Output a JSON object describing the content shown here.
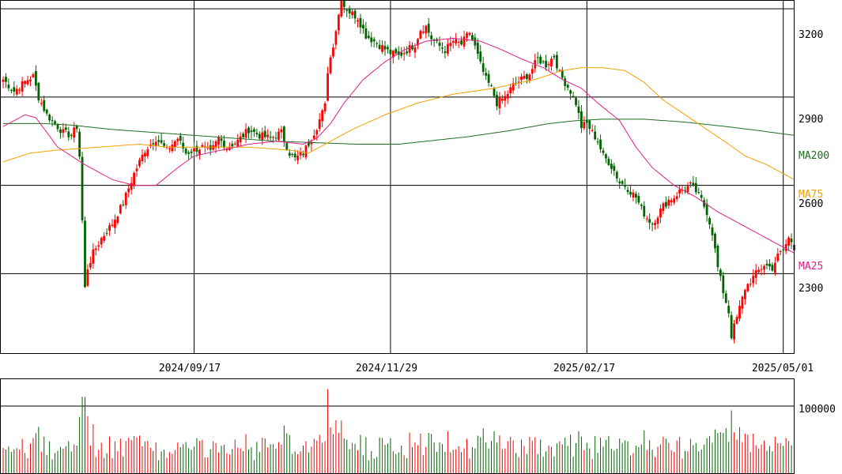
{
  "chart_data": {
    "type": "candlestick",
    "colors": {
      "up": "#ff0000",
      "down": "#006400",
      "ma25": "#e0208a",
      "ma75": "#f5a000",
      "ma200": "#1e6e1e",
      "grid": "#000000",
      "label": "#000000"
    },
    "price_axis": {
      "ylim": [
        2030,
        3230
      ],
      "ticks": [
        3200,
        2900,
        2600,
        2300
      ],
      "tick_labels": [
        "3200",
        "2900",
        "2600",
        "2300"
      ]
    },
    "date_axis": {
      "ticks": [
        "2024/09/17",
        "2024/11/29",
        "2025/02/17",
        "2025/05/01"
      ],
      "tick_index": [
        70,
        142,
        214,
        286
      ]
    },
    "volume_axis": {
      "ylim": [
        0,
        140000
      ],
      "ticks": [
        100000
      ],
      "tick_labels": [
        "100000"
      ]
    },
    "legend": [
      {
        "key": "ma200",
        "label": "MA200"
      },
      {
        "key": "ma75",
        "label": "MA75"
      },
      {
        "key": "ma25",
        "label": "MA25"
      }
    ],
    "anchors": [
      [
        0,
        2960
      ],
      [
        4,
        2920
      ],
      [
        9,
        2960
      ],
      [
        11,
        2970
      ],
      [
        13,
        2900
      ],
      [
        16,
        2840
      ],
      [
        19,
        2810
      ],
      [
        22,
        2780
      ],
      [
        25,
        2770
      ],
      [
        27,
        2800
      ],
      [
        28,
        2700
      ],
      [
        29,
        2480
      ],
      [
        30,
        2250
      ],
      [
        31,
        2320
      ],
      [
        33,
        2370
      ],
      [
        36,
        2420
      ],
      [
        40,
        2470
      ],
      [
        44,
        2540
      ],
      [
        48,
        2640
      ],
      [
        52,
        2720
      ],
      [
        56,
        2760
      ],
      [
        60,
        2720
      ],
      [
        64,
        2760
      ],
      [
        67,
        2710
      ],
      [
        70,
        2720
      ],
      [
        73,
        2730
      ],
      [
        76,
        2710
      ],
      [
        79,
        2760
      ],
      [
        82,
        2730
      ],
      [
        86,
        2750
      ],
      [
        90,
        2790
      ],
      [
        94,
        2770
      ],
      [
        98,
        2760
      ],
      [
        102,
        2780
      ],
      [
        105,
        2710
      ],
      [
        107,
        2690
      ],
      [
        110,
        2710
      ],
      [
        113,
        2760
      ],
      [
        115,
        2800
      ],
      [
        118,
        2870
      ],
      [
        119,
        2990
      ],
      [
        121,
        3080
      ],
      [
        123,
        3180
      ],
      [
        124,
        3250
      ],
      [
        125,
        3210
      ],
      [
        127,
        3190
      ],
      [
        130,
        3170
      ],
      [
        133,
        3110
      ],
      [
        136,
        3090
      ],
      [
        139,
        3070
      ],
      [
        142,
        3050
      ],
      [
        145,
        3040
      ],
      [
        148,
        3060
      ],
      [
        151,
        3080
      ],
      [
        153,
        3130
      ],
      [
        155,
        3140
      ],
      [
        157,
        3100
      ],
      [
        159,
        3080
      ],
      [
        162,
        3060
      ],
      [
        165,
        3090
      ],
      [
        168,
        3080
      ],
      [
        171,
        3120
      ],
      [
        173,
        3070
      ],
      [
        175,
        3010
      ],
      [
        177,
        2960
      ],
      [
        179,
        2930
      ],
      [
        181,
        2880
      ],
      [
        184,
        2900
      ],
      [
        187,
        2940
      ],
      [
        190,
        2960
      ],
      [
        193,
        2980
      ],
      [
        196,
        3030
      ],
      [
        199,
        3010
      ],
      [
        202,
        3040
      ],
      [
        204,
        2980
      ],
      [
        206,
        2950
      ],
      [
        208,
        2920
      ],
      [
        210,
        2880
      ],
      [
        212,
        2800
      ],
      [
        214,
        2810
      ],
      [
        216,
        2780
      ],
      [
        218,
        2750
      ],
      [
        220,
        2700
      ],
      [
        222,
        2680
      ],
      [
        224,
        2650
      ],
      [
        226,
        2610
      ],
      [
        228,
        2600
      ],
      [
        230,
        2580
      ],
      [
        232,
        2560
      ],
      [
        234,
        2520
      ],
      [
        236,
        2490
      ],
      [
        238,
        2470
      ],
      [
        240,
        2500
      ],
      [
        242,
        2530
      ],
      [
        244,
        2550
      ],
      [
        246,
        2560
      ],
      [
        248,
        2580
      ],
      [
        250,
        2590
      ],
      [
        252,
        2600
      ],
      [
        254,
        2580
      ],
      [
        256,
        2550
      ],
      [
        258,
        2510
      ],
      [
        260,
        2440
      ],
      [
        262,
        2320
      ],
      [
        264,
        2240
      ],
      [
        266,
        2170
      ],
      [
        267,
        2090
      ],
      [
        269,
        2150
      ],
      [
        272,
        2250
      ],
      [
        276,
        2300
      ],
      [
        279,
        2330
      ],
      [
        282,
        2320
      ],
      [
        284,
        2360
      ],
      [
        286,
        2380
      ],
      [
        288,
        2420
      ],
      [
        289,
        2410
      ],
      [
        290,
        2390
      ]
    ],
    "ma_anchors": {
      "ma25": [
        [
          0,
          2800
        ],
        [
          8,
          2840
        ],
        [
          12,
          2830
        ],
        [
          20,
          2730
        ],
        [
          30,
          2670
        ],
        [
          40,
          2620
        ],
        [
          48,
          2600
        ],
        [
          56,
          2600
        ],
        [
          64,
          2660
        ],
        [
          70,
          2700
        ],
        [
          80,
          2720
        ],
        [
          90,
          2740
        ],
        [
          100,
          2750
        ],
        [
          110,
          2740
        ],
        [
          115,
          2760
        ],
        [
          120,
          2810
        ],
        [
          125,
          2880
        ],
        [
          132,
          2960
        ],
        [
          140,
          3020
        ],
        [
          147,
          3060
        ],
        [
          155,
          3090
        ],
        [
          165,
          3100
        ],
        [
          175,
          3090
        ],
        [
          183,
          3060
        ],
        [
          190,
          3030
        ],
        [
          198,
          3000
        ],
        [
          205,
          2960
        ],
        [
          212,
          2930
        ],
        [
          218,
          2880
        ],
        [
          226,
          2820
        ],
        [
          232,
          2730
        ],
        [
          238,
          2660
        ],
        [
          246,
          2600
        ],
        [
          254,
          2560
        ],
        [
          262,
          2510
        ],
        [
          270,
          2470
        ],
        [
          278,
          2430
        ],
        [
          286,
          2390
        ],
        [
          290,
          2370
        ]
      ],
      "ma75": [
        [
          0,
          2680
        ],
        [
          10,
          2710
        ],
        [
          20,
          2720
        ],
        [
          35,
          2730
        ],
        [
          50,
          2740
        ],
        [
          60,
          2730
        ],
        [
          75,
          2730
        ],
        [
          90,
          2730
        ],
        [
          105,
          2720
        ],
        [
          112,
          2710
        ],
        [
          118,
          2740
        ],
        [
          128,
          2790
        ],
        [
          140,
          2840
        ],
        [
          152,
          2880
        ],
        [
          165,
          2910
        ],
        [
          180,
          2930
        ],
        [
          195,
          2960
        ],
        [
          205,
          2990
        ],
        [
          212,
          3000
        ],
        [
          220,
          3000
        ],
        [
          228,
          2990
        ],
        [
          235,
          2950
        ],
        [
          242,
          2890
        ],
        [
          250,
          2840
        ],
        [
          258,
          2790
        ],
        [
          266,
          2740
        ],
        [
          272,
          2700
        ],
        [
          280,
          2670
        ],
        [
          286,
          2640
        ],
        [
          290,
          2620
        ]
      ],
      "ma200": [
        [
          0,
          2810
        ],
        [
          15,
          2810
        ],
        [
          25,
          2805
        ],
        [
          40,
          2790
        ],
        [
          55,
          2780
        ],
        [
          70,
          2770
        ],
        [
          85,
          2760
        ],
        [
          100,
          2750
        ],
        [
          115,
          2745
        ],
        [
          130,
          2740
        ],
        [
          145,
          2740
        ],
        [
          155,
          2750
        ],
        [
          170,
          2765
        ],
        [
          185,
          2785
        ],
        [
          200,
          2810
        ],
        [
          210,
          2820
        ],
        [
          220,
          2825
        ],
        [
          235,
          2825
        ],
        [
          250,
          2815
        ],
        [
          265,
          2800
        ],
        [
          278,
          2785
        ],
        [
          290,
          2770
        ]
      ]
    }
  }
}
